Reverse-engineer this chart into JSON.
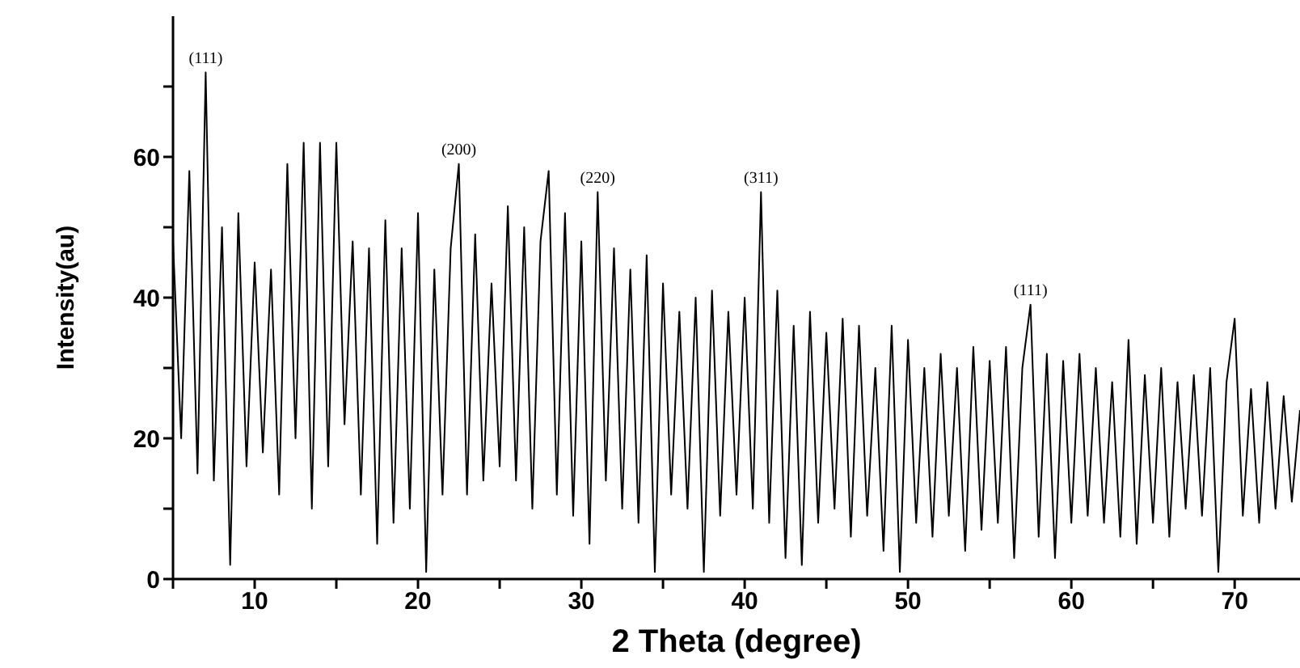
{
  "chart_data": {
    "type": "line",
    "xlabel": "2 Theta (degree)",
    "ylabel": "Intensity(au)",
    "color": "#000000",
    "marker": "none",
    "line_style": "solid",
    "xlim": [
      5,
      74
    ],
    "xticks": [
      {
        "value": 5,
        "label": null
      },
      10,
      {
        "value": 15,
        "label": null
      },
      20,
      {
        "value": 25,
        "label": null
      },
      30,
      {
        "value": 35,
        "label": null
      },
      40,
      {
        "value": 45,
        "label": null
      },
      50,
      {
        "value": 55,
        "label": null
      },
      60,
      {
        "value": 65,
        "label": null
      },
      70
    ],
    "ylim": [
      0,
      80
    ],
    "yticks": [
      0,
      {
        "value": 10,
        "label": null
      },
      20,
      {
        "value": 30,
        "label": null
      },
      40,
      {
        "value": 50,
        "label": null
      },
      60,
      {
        "value": 70,
        "label": null
      }
    ],
    "x": [
      5.0,
      5.5,
      6.0,
      6.5,
      7.0,
      7.5,
      8.0,
      8.5,
      9.0,
      9.5,
      10.0,
      10.5,
      11.0,
      11.5,
      12.0,
      12.5,
      13.0,
      13.5,
      14.0,
      14.5,
      15.0,
      15.5,
      16.0,
      16.5,
      17.0,
      17.5,
      18.0,
      18.5,
      19.0,
      19.5,
      20.0,
      20.5,
      21.0,
      21.5,
      22.0,
      22.5,
      23.0,
      23.5,
      24.0,
      24.5,
      25.0,
      25.5,
      26.0,
      26.5,
      27.0,
      27.5,
      28.0,
      28.5,
      29.0,
      29.5,
      30.0,
      30.5,
      31.0,
      31.5,
      32.0,
      32.5,
      33.0,
      33.5,
      34.0,
      34.5,
      35.0,
      35.5,
      36.0,
      36.5,
      37.0,
      37.5,
      38.0,
      38.5,
      39.0,
      39.5,
      40.0,
      40.5,
      41.0,
      41.5,
      42.0,
      42.5,
      43.0,
      43.5,
      44.0,
      44.5,
      45.0,
      45.5,
      46.0,
      46.5,
      47.0,
      47.5,
      48.0,
      48.5,
      49.0,
      49.5,
      50.0,
      50.5,
      51.0,
      51.5,
      52.0,
      52.5,
      53.0,
      53.5,
      54.0,
      54.5,
      55.0,
      55.5,
      56.0,
      56.5,
      57.0,
      57.5,
      58.0,
      58.5,
      59.0,
      59.5,
      60.0,
      60.5,
      61.0,
      61.5,
      62.0,
      62.5,
      63.0,
      63.5,
      64.0,
      64.5,
      65.0,
      65.5,
      66.0,
      66.5,
      67.0,
      67.5,
      68.0,
      68.5,
      69.0,
      69.5,
      70.0,
      70.5,
      71.0,
      71.5,
      72.0,
      72.5,
      73.0,
      73.5,
      74.0
    ],
    "values": [
      48,
      20,
      58,
      15,
      72,
      14,
      50,
      2,
      52,
      16,
      45,
      18,
      44,
      12,
      59,
      20,
      62,
      10,
      62,
      16,
      62,
      22,
      48,
      12,
      47,
      5,
      51,
      8,
      47,
      10,
      52,
      1,
      44,
      12,
      47,
      59,
      12,
      49,
      14,
      42,
      16,
      53,
      14,
      50,
      10,
      48,
      58,
      12,
      52,
      9,
      48,
      5,
      55,
      14,
      47,
      10,
      44,
      8,
      46,
      1,
      42,
      12,
      38,
      10,
      40,
      1,
      41,
      9,
      38,
      12,
      40,
      10,
      55,
      8,
      41,
      3,
      36,
      2,
      38,
      8,
      35,
      10,
      37,
      6,
      36,
      9,
      30,
      4,
      36,
      1,
      34,
      8,
      30,
      6,
      32,
      9,
      30,
      4,
      33,
      7,
      31,
      8,
      33,
      3,
      30,
      39,
      6,
      32,
      3,
      31,
      8,
      32,
      9,
      30,
      8,
      28,
      6,
      34,
      5,
      29,
      8,
      30,
      6,
      28,
      10,
      29,
      9,
      30,
      1,
      28,
      37,
      9,
      27,
      8,
      28,
      10,
      26,
      11,
      24
    ],
    "annotations": [
      {
        "text": "(111)",
        "x": 7.0,
        "y": 72
      },
      {
        "text": "(200)",
        "x": 22.5,
        "y": 59
      },
      {
        "text": "(220)",
        "x": 31.0,
        "y": 55
      },
      {
        "text": "(311)",
        "x": 41.0,
        "y": 55
      },
      {
        "text": "(111)",
        "x": 57.5,
        "y": 39
      }
    ]
  }
}
